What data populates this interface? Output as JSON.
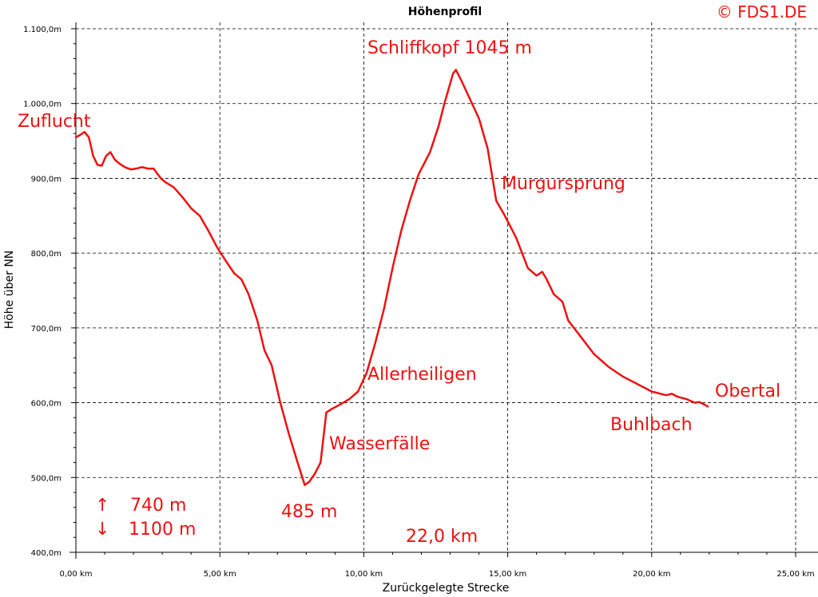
{
  "chart_data": {
    "type": "line",
    "title": "Höhenprofil",
    "xlabel": "Zurückgelegte Strecke",
    "ylabel": "Höhe über NN",
    "xlim": [
      0,
      25
    ],
    "ylim": [
      400,
      1100
    ],
    "grid": true,
    "x_ticks": [
      {
        "value": 0,
        "label": "0,00 km"
      },
      {
        "value": 5,
        "label": "5,00 km"
      },
      {
        "value": 10,
        "label": "10,00 km"
      },
      {
        "value": 15,
        "label": "15,00 km"
      },
      {
        "value": 20,
        "label": "20,00 km"
      },
      {
        "value": 25,
        "label": "25,00 km"
      }
    ],
    "y_ticks": [
      {
        "value": 400,
        "label": "400,0m"
      },
      {
        "value": 500,
        "label": "500,0m"
      },
      {
        "value": 600,
        "label": "600,0m"
      },
      {
        "value": 700,
        "label": "700,0m"
      },
      {
        "value": 800,
        "label": "800,0m"
      },
      {
        "value": 900,
        "label": "900,0m"
      },
      {
        "value": 1000,
        "label": "1.000,0m"
      },
      {
        "value": 1100,
        "label": "1.100,0m"
      }
    ],
    "series": [
      {
        "color": "#ee1111",
        "x": [
          0.0,
          0.15,
          0.3,
          0.45,
          0.6,
          0.75,
          0.9,
          1.05,
          1.2,
          1.35,
          1.5,
          1.7,
          1.9,
          2.1,
          2.3,
          2.5,
          2.7,
          2.95,
          3.1,
          3.4,
          3.7,
          4.0,
          4.3,
          4.6,
          4.9,
          5.2,
          5.5,
          5.75,
          6.0,
          6.3,
          6.55,
          6.8,
          7.1,
          7.4,
          7.7,
          7.95,
          8.1,
          8.3,
          8.5,
          8.7,
          8.9,
          9.2,
          9.5,
          9.8,
          10.1,
          10.4,
          10.7,
          11.0,
          11.3,
          11.6,
          11.9,
          12.3,
          12.6,
          12.8,
          12.95,
          13.1,
          13.2,
          13.4,
          13.7,
          14.0,
          14.3,
          14.6,
          14.9,
          15.3,
          15.7,
          16.0,
          16.2,
          16.35,
          16.6,
          16.9,
          17.1,
          17.5,
          18.0,
          18.5,
          19.0,
          19.5,
          20.0,
          20.5,
          20.7,
          20.9,
          21.2,
          21.5,
          21.65,
          21.8,
          21.95
        ],
        "y": [
          955,
          958,
          962,
          955,
          930,
          918,
          917,
          930,
          935,
          925,
          920,
          915,
          912,
          913,
          915,
          913,
          913,
          900,
          895,
          888,
          875,
          860,
          850,
          830,
          808,
          790,
          773,
          765,
          745,
          710,
          670,
          650,
          600,
          558,
          520,
          490,
          494,
          505,
          520,
          587,
          592,
          598,
          605,
          615,
          640,
          680,
          725,
          780,
          830,
          870,
          905,
          935,
          970,
          1000,
          1020,
          1040,
          1045,
          1030,
          1005,
          980,
          940,
          870,
          850,
          820,
          780,
          770,
          775,
          765,
          745,
          735,
          710,
          690,
          665,
          648,
          635,
          625,
          615,
          610,
          612,
          608,
          605,
          600,
          601,
          598,
          595
        ]
      }
    ],
    "annotations": [
      {
        "text": "Zuflucht",
        "x": 0.35,
        "y": 955
      },
      {
        "text": "Schliffkopf 1045 m",
        "x": 13.2,
        "y": 1045
      },
      {
        "text": "Murgursprung",
        "x": 14.8,
        "y": 870
      },
      {
        "text": "Allerheiligen",
        "x": 10.3,
        "y": 620
      },
      {
        "text": "Wasserfälle",
        "x": 9.0,
        "y": 545
      },
      {
        "text": "485 m",
        "x": 7.9,
        "y": 490
      },
      {
        "text": "Buhlbach",
        "x": 19.0,
        "y": 600
      },
      {
        "text": "Obertal",
        "x": 21.9,
        "y": 595
      }
    ]
  },
  "copyright": "© FDS1.DE",
  "stats": {
    "ascent_arrow": "↑",
    "ascent": "740 m",
    "descent_arrow": "↓",
    "descent": "1100 m",
    "distance": "22,0 km"
  }
}
